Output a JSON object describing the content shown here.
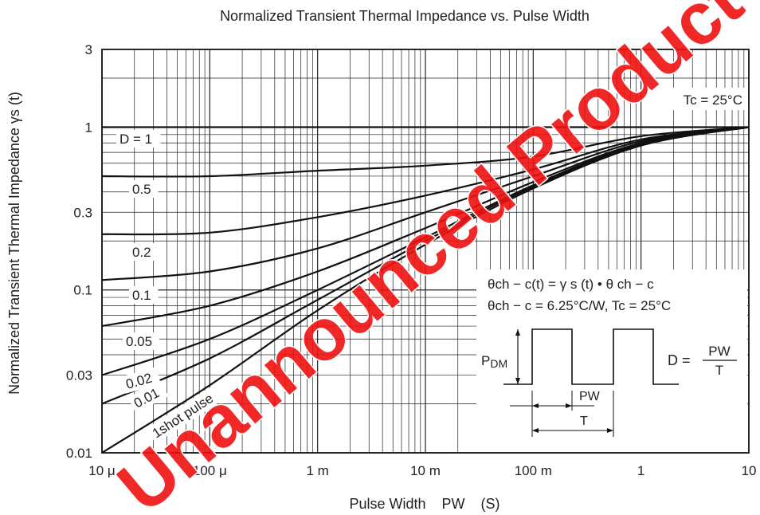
{
  "chart_data": {
    "type": "line",
    "title": "Normalized Transient Thermal Impedance vs. Pulse Width",
    "xlabel": "Pulse Width    PW    (S)",
    "ylabel": "Normalized Transient Thermal Impedance  γs  (t)",
    "x_scale": "log",
    "y_scale": "log",
    "xlim": [
      1e-05,
      10
    ],
    "ylim": [
      0.01,
      3
    ],
    "grid": true,
    "x_ticks": [
      {
        "value": 1e-05,
        "label": "10 μ"
      },
      {
        "value": 0.0001,
        "label": "100 μ"
      },
      {
        "value": 0.001,
        "label": "1 m"
      },
      {
        "value": 0.01,
        "label": "10 m"
      },
      {
        "value": 0.1,
        "label": "100 m"
      },
      {
        "value": 1,
        "label": "1"
      },
      {
        "value": 10,
        "label": "10"
      }
    ],
    "y_ticks": [
      {
        "value": 0.01,
        "label": "0.01"
      },
      {
        "value": 0.03,
        "label": "0.03"
      },
      {
        "value": 0.1,
        "label": "0.1"
      },
      {
        "value": 0.3,
        "label": "0.3"
      },
      {
        "value": 1,
        "label": "1"
      },
      {
        "value": 3,
        "label": "3"
      }
    ],
    "series": [
      {
        "name": "D = 1",
        "points": [
          [
            1e-05,
            1.0
          ],
          [
            10,
            1.0
          ]
        ]
      },
      {
        "name": "0.5",
        "points": [
          [
            1e-05,
            0.5
          ],
          [
            0.0001,
            0.5
          ],
          [
            0.001,
            0.54
          ],
          [
            0.01,
            0.58
          ],
          [
            0.1,
            0.66
          ],
          [
            1,
            0.88
          ],
          [
            10,
            1.0
          ]
        ]
      },
      {
        "name": "0.2",
        "points": [
          [
            1e-05,
            0.22
          ],
          [
            0.0001,
            0.225
          ],
          [
            0.001,
            0.28
          ],
          [
            0.01,
            0.38
          ],
          [
            0.1,
            0.55
          ],
          [
            1,
            0.84
          ],
          [
            10,
            1.0
          ]
        ]
      },
      {
        "name": "0.1",
        "points": [
          [
            1e-05,
            0.115
          ],
          [
            0.0001,
            0.13
          ],
          [
            0.001,
            0.18
          ],
          [
            0.01,
            0.3
          ],
          [
            0.1,
            0.5
          ],
          [
            1,
            0.82
          ],
          [
            10,
            1.0
          ]
        ]
      },
      {
        "name": "0.05",
        "points": [
          [
            1e-05,
            0.06
          ],
          [
            0.0001,
            0.08
          ],
          [
            0.001,
            0.13
          ],
          [
            0.01,
            0.24
          ],
          [
            0.1,
            0.46
          ],
          [
            1,
            0.8
          ],
          [
            10,
            1.0
          ]
        ]
      },
      {
        "name": "0.02",
        "points": [
          [
            1e-05,
            0.03
          ],
          [
            0.0001,
            0.05
          ],
          [
            0.001,
            0.1
          ],
          [
            0.01,
            0.21
          ],
          [
            0.1,
            0.44
          ],
          [
            1,
            0.79
          ],
          [
            10,
            1.0
          ]
        ]
      },
      {
        "name": "0.01",
        "points": [
          [
            1e-05,
            0.02
          ],
          [
            0.0001,
            0.038
          ],
          [
            0.001,
            0.087
          ],
          [
            0.01,
            0.2
          ],
          [
            0.1,
            0.43
          ],
          [
            1,
            0.78
          ],
          [
            10,
            1.0
          ]
        ]
      },
      {
        "name": "1shot pulse",
        "points": [
          [
            1e-05,
            0.01
          ],
          [
            0.0001,
            0.026
          ],
          [
            0.001,
            0.075
          ],
          [
            0.01,
            0.19
          ],
          [
            0.1,
            0.42
          ],
          [
            1,
            0.77
          ],
          [
            10,
            1.0
          ]
        ]
      }
    ],
    "annotations": {
      "tc_note": "Tc = 25°C",
      "formula_line1": "θch − c(t) = γ s (t) • θ ch − c",
      "formula_line2": "θch − c = 6.25°C/W, Tc = 25°C",
      "pdm_label": "P",
      "pdm_sub": "DM",
      "pw_label": "PW",
      "t_label": "T",
      "d_eq": "D =",
      "d_num": "PW",
      "d_den": "T"
    },
    "watermark": "Unannounced Product"
  }
}
